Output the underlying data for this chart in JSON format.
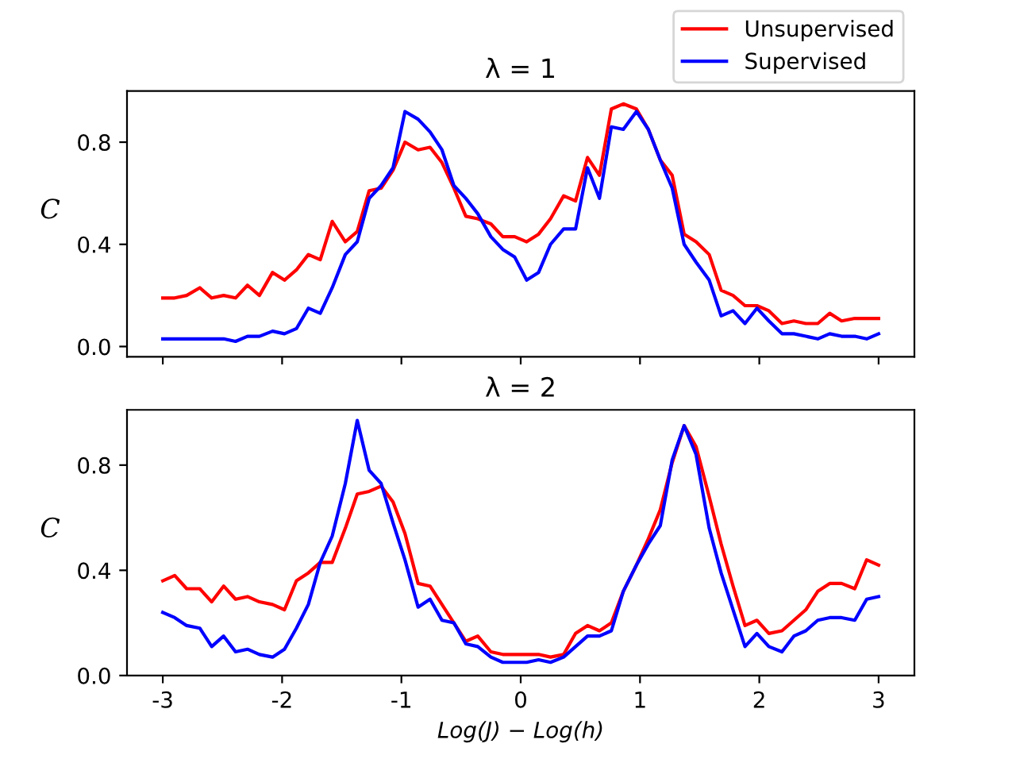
{
  "chart_data": [
    {
      "type": "line",
      "title": "λ = 1",
      "x": [
        -3.0,
        -2.9,
        -2.8,
        -2.69,
        -2.59,
        -2.49,
        -2.39,
        -2.29,
        -2.19,
        -2.08,
        -1.98,
        -1.88,
        -1.78,
        -1.68,
        -1.58,
        -1.47,
        -1.37,
        -1.27,
        -1.17,
        -1.07,
        -0.97,
        -0.86,
        -0.76,
        -0.66,
        -0.56,
        -0.46,
        -0.36,
        -0.25,
        -0.15,
        -0.05,
        0.05,
        0.15,
        0.25,
        0.36,
        0.46,
        0.56,
        0.66,
        0.76,
        0.86,
        0.97,
        1.07,
        1.17,
        1.27,
        1.37,
        1.47,
        1.58,
        1.68,
        1.78,
        1.88,
        1.98,
        2.08,
        2.19,
        2.29,
        2.39,
        2.49,
        2.59,
        2.69,
        2.8,
        2.9,
        3.0
      ],
      "ylabel": "C",
      "xlabel": null,
      "legend": "top right",
      "tick_labels": "y",
      "xlim": [
        -3.3,
        3.3
      ],
      "xticks": [
        -3,
        -2,
        -1,
        0,
        1,
        2,
        3
      ],
      "ylim": [
        -0.04,
        1.0
      ],
      "yticks": [
        {
          "value": 0,
          "label": "0.0"
        },
        {
          "value": 0.4,
          "label": "0.4"
        },
        {
          "value": 0.8,
          "label": "0.8"
        }
      ],
      "series": [
        {
          "name": "Unsupervised",
          "color": "#ff0000",
          "values": [
            0.19,
            0.19,
            0.2,
            0.23,
            0.19,
            0.2,
            0.19,
            0.24,
            0.2,
            0.29,
            0.26,
            0.3,
            0.36,
            0.34,
            0.49,
            0.41,
            0.45,
            0.61,
            0.62,
            0.69,
            0.8,
            0.77,
            0.78,
            0.72,
            0.62,
            0.51,
            0.5,
            0.48,
            0.43,
            0.43,
            0.41,
            0.44,
            0.5,
            0.59,
            0.57,
            0.74,
            0.67,
            0.93,
            0.95,
            0.93,
            0.85,
            0.73,
            0.67,
            0.44,
            0.41,
            0.36,
            0.22,
            0.2,
            0.16,
            0.16,
            0.14,
            0.09,
            0.1,
            0.09,
            0.09,
            0.13,
            0.1,
            0.11,
            0.11,
            0.11
          ]
        },
        {
          "name": "Supervised",
          "color": "#0000ff",
          "values": [
            0.03,
            0.03,
            0.03,
            0.03,
            0.03,
            0.03,
            0.02,
            0.04,
            0.04,
            0.06,
            0.05,
            0.07,
            0.15,
            0.13,
            0.23,
            0.36,
            0.41,
            0.58,
            0.63,
            0.7,
            0.92,
            0.89,
            0.84,
            0.77,
            0.63,
            0.58,
            0.52,
            0.43,
            0.38,
            0.35,
            0.26,
            0.29,
            0.4,
            0.46,
            0.46,
            0.7,
            0.58,
            0.86,
            0.85,
            0.92,
            0.85,
            0.73,
            0.62,
            0.4,
            0.33,
            0.26,
            0.12,
            0.14,
            0.09,
            0.15,
            0.1,
            0.05,
            0.05,
            0.04,
            0.03,
            0.05,
            0.04,
            0.04,
            0.03,
            0.05
          ]
        }
      ]
    },
    {
      "type": "line",
      "title": "λ = 2",
      "x": [
        -3.0,
        -2.9,
        -2.8,
        -2.69,
        -2.59,
        -2.49,
        -2.39,
        -2.29,
        -2.19,
        -2.08,
        -1.98,
        -1.88,
        -1.78,
        -1.68,
        -1.58,
        -1.47,
        -1.37,
        -1.27,
        -1.17,
        -1.07,
        -0.97,
        -0.86,
        -0.76,
        -0.66,
        -0.56,
        -0.46,
        -0.36,
        -0.25,
        -0.15,
        -0.05,
        0.05,
        0.15,
        0.25,
        0.36,
        0.46,
        0.56,
        0.66,
        0.76,
        0.86,
        0.97,
        1.07,
        1.17,
        1.27,
        1.37,
        1.47,
        1.58,
        1.68,
        1.78,
        1.88,
        1.98,
        2.08,
        2.19,
        2.29,
        2.39,
        2.49,
        2.59,
        2.69,
        2.8,
        2.9,
        3.0
      ],
      "ylabel": "C",
      "xlabel": "Log(J) − Log(h)",
      "xlim": [
        -3.3,
        3.3
      ],
      "xticks": [
        -3,
        -2,
        -1,
        0,
        1,
        2,
        3
      ],
      "ylim": [
        0,
        1.01
      ],
      "yticks": [
        {
          "value": 0,
          "label": "0.0"
        },
        {
          "value": 0.4,
          "label": "0.4"
        },
        {
          "value": 0.8,
          "label": "0.8"
        }
      ],
      "series": [
        {
          "color": "#ff0000",
          "values": [
            0.36,
            0.38,
            0.33,
            0.33,
            0.28,
            0.34,
            0.29,
            0.3,
            0.28,
            0.27,
            0.25,
            0.36,
            0.39,
            0.43,
            0.43,
            0.56,
            0.69,
            0.7,
            0.72,
            0.66,
            0.54,
            0.35,
            0.34,
            0.27,
            0.2,
            0.13,
            0.15,
            0.09,
            0.08,
            0.08,
            0.08,
            0.08,
            0.07,
            0.08,
            0.16,
            0.19,
            0.17,
            0.2,
            0.32,
            0.42,
            0.52,
            0.63,
            0.81,
            0.95,
            0.87,
            0.68,
            0.5,
            0.34,
            0.19,
            0.21,
            0.16,
            0.17,
            0.21,
            0.25,
            0.32,
            0.35,
            0.35,
            0.33,
            0.44,
            0.42
          ]
        },
        {
          "color": "#0000ff",
          "values": [
            0.24,
            0.22,
            0.19,
            0.18,
            0.11,
            0.15,
            0.09,
            0.1,
            0.08,
            0.07,
            0.1,
            0.18,
            0.27,
            0.43,
            0.53,
            0.73,
            0.97,
            0.78,
            0.73,
            0.58,
            0.44,
            0.26,
            0.29,
            0.21,
            0.2,
            0.12,
            0.11,
            0.07,
            0.05,
            0.05,
            0.05,
            0.06,
            0.05,
            0.07,
            0.11,
            0.15,
            0.15,
            0.17,
            0.32,
            0.42,
            0.5,
            0.57,
            0.82,
            0.95,
            0.84,
            0.56,
            0.39,
            0.25,
            0.11,
            0.16,
            0.11,
            0.09,
            0.15,
            0.17,
            0.21,
            0.22,
            0.22,
            0.21,
            0.29,
            0.3
          ]
        }
      ]
    }
  ]
}
